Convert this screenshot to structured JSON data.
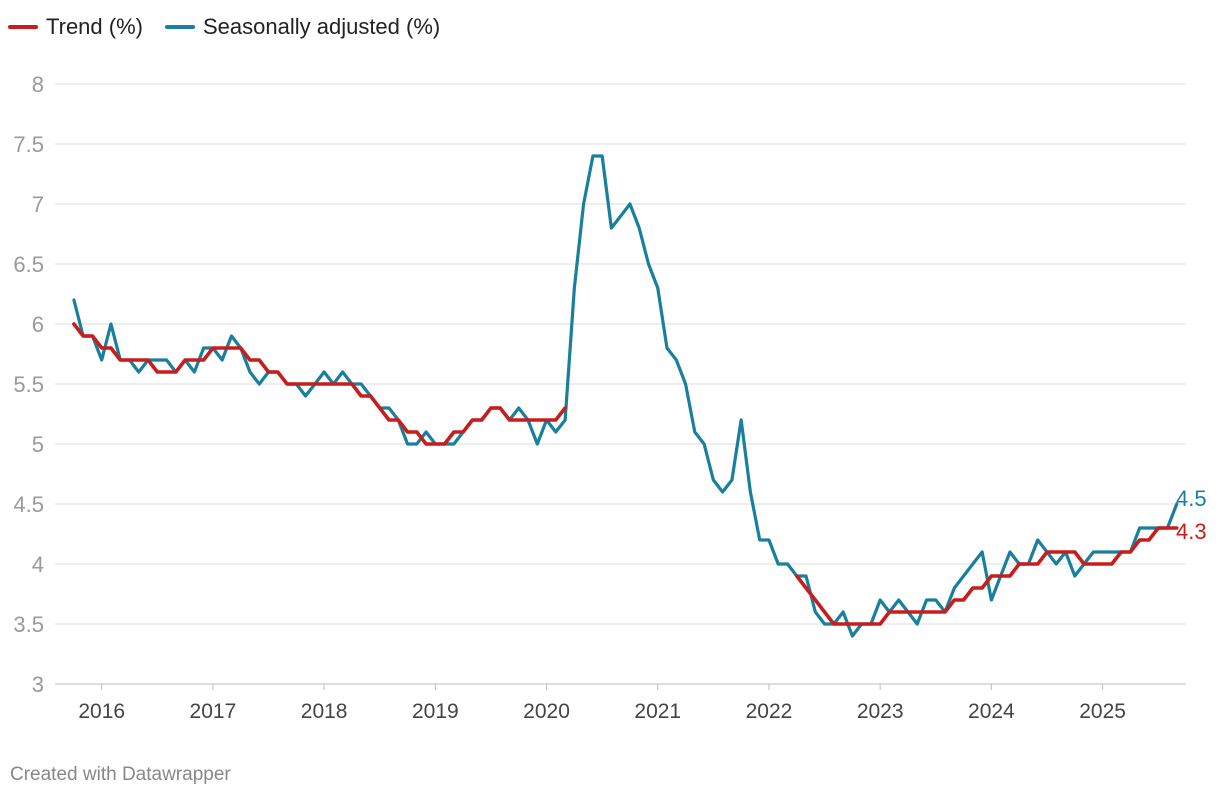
{
  "colors": {
    "trend": "#c71e1d",
    "seasonal": "#18809e",
    "grid": "#dedede",
    "tick": "#9a9a9a"
  },
  "legend": {
    "trend_label": "Trend (%)",
    "seasonal_label": "Seasonally adjusted (%)"
  },
  "footer": "Created with Datawrapper",
  "chart_data": {
    "type": "line",
    "title": "",
    "xlabel": "",
    "ylabel": "",
    "ylim": [
      3,
      8
    ],
    "yticks": [
      3,
      3.5,
      4,
      4.5,
      5,
      5.5,
      6,
      6.5,
      7,
      7.5,
      8
    ],
    "ytick_labels": [
      "3",
      "3.5",
      "4",
      "4.5",
      "5",
      "5.5",
      "6",
      "6.5",
      "7",
      "7.5",
      "8"
    ],
    "xlim": [
      2015.58,
      2025.75
    ],
    "xticks": [
      2016,
      2017,
      2018,
      2019,
      2020,
      2021,
      2022,
      2023,
      2024,
      2025
    ],
    "xtick_labels": [
      "2016",
      "2017",
      "2018",
      "2019",
      "2020",
      "2021",
      "2022",
      "2023",
      "2024",
      "2025"
    ],
    "grid": true,
    "legend_position": "top-left",
    "series": [
      {
        "name": "Seasonally adjusted (%)",
        "end_label": "4.5",
        "x": [
          2015.75,
          2015.833,
          2015.917,
          2016.0,
          2016.083,
          2016.167,
          2016.25,
          2016.333,
          2016.417,
          2016.5,
          2016.583,
          2016.667,
          2016.75,
          2016.833,
          2016.917,
          2017.0,
          2017.083,
          2017.167,
          2017.25,
          2017.333,
          2017.417,
          2017.5,
          2017.583,
          2017.667,
          2017.75,
          2017.833,
          2017.917,
          2018.0,
          2018.083,
          2018.167,
          2018.25,
          2018.333,
          2018.417,
          2018.5,
          2018.583,
          2018.667,
          2018.75,
          2018.833,
          2018.917,
          2019.0,
          2019.083,
          2019.167,
          2019.25,
          2019.333,
          2019.417,
          2019.5,
          2019.583,
          2019.667,
          2019.75,
          2019.833,
          2019.917,
          2020.0,
          2020.083,
          2020.167,
          2020.25,
          2020.333,
          2020.417,
          2020.5,
          2020.583,
          2020.667,
          2020.75,
          2020.833,
          2020.917,
          2021.0,
          2021.083,
          2021.167,
          2021.25,
          2021.333,
          2021.417,
          2021.5,
          2021.583,
          2021.667,
          2021.75,
          2021.833,
          2021.917,
          2022.0,
          2022.083,
          2022.167,
          2022.25,
          2022.333,
          2022.417,
          2022.5,
          2022.583,
          2022.667,
          2022.75,
          2022.833,
          2022.917,
          2023.0,
          2023.083,
          2023.167,
          2023.25,
          2023.333,
          2023.417,
          2023.5,
          2023.583,
          2023.667,
          2023.75,
          2023.833,
          2023.917,
          2024.0,
          2024.083,
          2024.167,
          2024.25,
          2024.333,
          2024.417,
          2024.5,
          2024.583,
          2024.667,
          2024.75,
          2024.833,
          2024.917,
          2025.0,
          2025.083,
          2025.167,
          2025.25,
          2025.333,
          2025.417,
          2025.5,
          2025.583,
          2025.667
        ],
        "values": [
          6.2,
          5.9,
          5.9,
          5.7,
          6.0,
          5.7,
          5.7,
          5.6,
          5.7,
          5.7,
          5.7,
          5.6,
          5.7,
          5.6,
          5.8,
          5.8,
          5.7,
          5.9,
          5.8,
          5.6,
          5.5,
          5.6,
          5.6,
          5.5,
          5.5,
          5.4,
          5.5,
          5.6,
          5.5,
          5.6,
          5.5,
          5.5,
          5.4,
          5.3,
          5.3,
          5.2,
          5.0,
          5.0,
          5.1,
          5.0,
          5.0,
          5.0,
          5.1,
          5.2,
          5.2,
          5.3,
          5.3,
          5.2,
          5.3,
          5.2,
          5.0,
          5.2,
          5.1,
          5.2,
          6.3,
          7.0,
          7.4,
          7.4,
          6.8,
          6.9,
          7.0,
          6.8,
          6.5,
          6.3,
          5.8,
          5.7,
          5.5,
          5.1,
          5.0,
          4.7,
          4.6,
          4.7,
          5.2,
          4.6,
          4.2,
          4.2,
          4.0,
          4.0,
          3.9,
          3.9,
          3.6,
          3.5,
          3.5,
          3.6,
          3.4,
          3.5,
          3.5,
          3.7,
          3.6,
          3.7,
          3.6,
          3.5,
          3.7,
          3.7,
          3.6,
          3.8,
          3.9,
          4.0,
          4.1,
          3.7,
          3.9,
          4.1,
          4.0,
          4.0,
          4.2,
          4.1,
          4.0,
          4.1,
          3.9,
          4.0,
          4.1,
          4.1,
          4.1,
          4.1,
          4.1,
          4.3,
          4.3,
          4.3,
          4.3,
          4.5
        ]
      },
      {
        "name": "Trend (%)",
        "end_label": "4.3",
        "segments": [
          {
            "x": [
              2015.75,
              2015.833,
              2015.917,
              2016.0,
              2016.083,
              2016.167,
              2016.25,
              2016.333,
              2016.417,
              2016.5,
              2016.583,
              2016.667,
              2016.75,
              2016.833,
              2016.917,
              2017.0,
              2017.083,
              2017.167,
              2017.25,
              2017.333,
              2017.417,
              2017.5,
              2017.583,
              2017.667,
              2017.75,
              2017.833,
              2017.917,
              2018.0,
              2018.083,
              2018.167,
              2018.25,
              2018.333,
              2018.417,
              2018.5,
              2018.583,
              2018.667,
              2018.75,
              2018.833,
              2018.917,
              2019.0,
              2019.083,
              2019.167,
              2019.25,
              2019.333,
              2019.417,
              2019.5,
              2019.583,
              2019.667,
              2019.75,
              2019.833,
              2019.917,
              2020.0,
              2020.083,
              2020.167
            ],
            "values": [
              6.0,
              5.9,
              5.9,
              5.8,
              5.8,
              5.7,
              5.7,
              5.7,
              5.7,
              5.6,
              5.6,
              5.6,
              5.7,
              5.7,
              5.7,
              5.8,
              5.8,
              5.8,
              5.8,
              5.7,
              5.7,
              5.6,
              5.6,
              5.5,
              5.5,
              5.5,
              5.5,
              5.5,
              5.5,
              5.5,
              5.5,
              5.4,
              5.4,
              5.3,
              5.2,
              5.2,
              5.1,
              5.1,
              5.0,
              5.0,
              5.0,
              5.1,
              5.1,
              5.2,
              5.2,
              5.3,
              5.3,
              5.2,
              5.2,
              5.2,
              5.2,
              5.2,
              5.2,
              5.3
            ]
          },
          {
            "x": [
              2022.25,
              2022.333,
              2022.417,
              2022.5,
              2022.583,
              2022.667,
              2022.75,
              2022.833,
              2022.917,
              2023.0,
              2023.083,
              2023.167,
              2023.25,
              2023.333,
              2023.417,
              2023.5,
              2023.583,
              2023.667,
              2023.75,
              2023.833,
              2023.917,
              2024.0,
              2024.083,
              2024.167,
              2024.25,
              2024.333,
              2024.417,
              2024.5,
              2024.583,
              2024.667,
              2024.75,
              2024.833,
              2024.917,
              2025.0,
              2025.083,
              2025.167,
              2025.25,
              2025.333,
              2025.417,
              2025.5,
              2025.583,
              2025.667
            ],
            "values": [
              3.9,
              3.8,
              3.7,
              3.6,
              3.5,
              3.5,
              3.5,
              3.5,
              3.5,
              3.5,
              3.6,
              3.6,
              3.6,
              3.6,
              3.6,
              3.6,
              3.6,
              3.7,
              3.7,
              3.8,
              3.8,
              3.9,
              3.9,
              3.9,
              4.0,
              4.0,
              4.0,
              4.1,
              4.1,
              4.1,
              4.1,
              4.0,
              4.0,
              4.0,
              4.0,
              4.1,
              4.1,
              4.2,
              4.2,
              4.3,
              4.3,
              4.3
            ]
          }
        ]
      }
    ]
  }
}
